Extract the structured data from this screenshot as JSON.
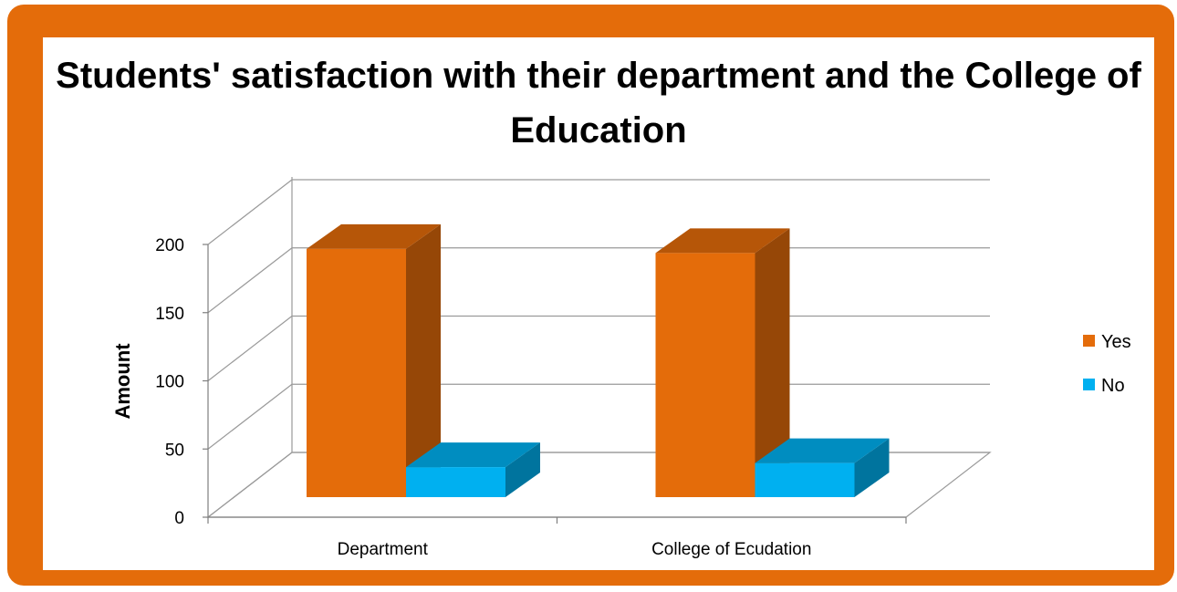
{
  "chart_data": {
    "type": "bar",
    "title": "Students' satisfaction with their department and the College of Education",
    "xlabel": "",
    "ylabel": "Amount",
    "categories": [
      "Department",
      "College of Ecudation"
    ],
    "series": [
      {
        "name": "Yes",
        "values": [
          182,
          179
        ],
        "color": "#E46C0A"
      },
      {
        "name": "No",
        "values": [
          22,
          25
        ],
        "color": "#00B0F0"
      }
    ],
    "ylim": [
      0,
      200
    ],
    "yticks": [
      0,
      50,
      100,
      150,
      200
    ],
    "grid": true,
    "legend": "right",
    "style": "3d-clustered-column"
  },
  "frame": {
    "border_color": "#E46C0A"
  }
}
